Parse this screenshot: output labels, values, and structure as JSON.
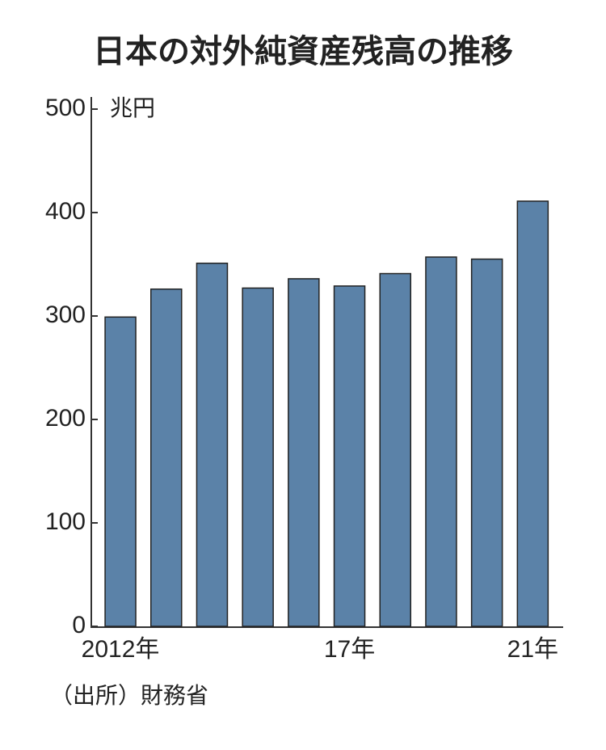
{
  "chart_data": {
    "type": "bar",
    "title": "日本の対外純資産残高の推移",
    "y_unit": "兆円",
    "categories": [
      "2012年",
      null,
      null,
      null,
      null,
      "17年",
      null,
      null,
      null,
      "21年"
    ],
    "values": [
      299,
      326,
      351,
      327,
      336,
      329,
      341,
      357,
      355,
      411
    ],
    "color": "#5b82a8",
    "ylim": [
      0,
      500
    ],
    "yticks": [
      0,
      100,
      200,
      300,
      400,
      500
    ],
    "grid": false,
    "source": "（出所）財務省"
  }
}
